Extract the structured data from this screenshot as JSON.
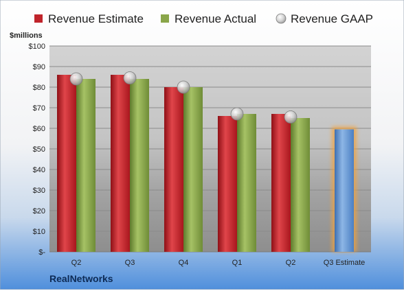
{
  "chart_data": {
    "type": "bar",
    "title": "",
    "ylabel": "$millions",
    "xlabel": "",
    "company": "RealNetworks",
    "categories": [
      "Q2",
      "Q3",
      "Q4",
      "Q1",
      "Q2",
      "Q3 Estimate"
    ],
    "ylim": [
      0,
      100
    ],
    "ytick_labels": [
      "$-",
      "$10",
      "$20",
      "$30",
      "$40",
      "$50",
      "$60",
      "$70",
      "$80",
      "$90",
      "$100"
    ],
    "grid": true,
    "legend_position": "top",
    "series": [
      {
        "name": "Revenue Estimate",
        "kind": "bar",
        "color": "#c0242b",
        "values": [
          86,
          86,
          80,
          66,
          67,
          null
        ]
      },
      {
        "name": "Revenue Actual",
        "kind": "bar",
        "color": "#8aa64a",
        "values": [
          84,
          84,
          80,
          67,
          65,
          null
        ]
      },
      {
        "name": "Revenue GAAP",
        "kind": "marker",
        "color": "#c8c8c8",
        "values": [
          84,
          84.5,
          80,
          67,
          65.5,
          null
        ]
      }
    ],
    "estimate_bar": {
      "category": "Q3 Estimate",
      "value": 59.5,
      "color": "#6e9fd8",
      "glow": "#f3a23a"
    }
  }
}
